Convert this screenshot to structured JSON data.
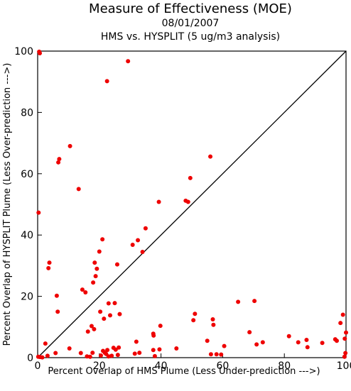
{
  "chart_data": {
    "type": "scatter",
    "title": "Measure of Effectiveness (MOE)",
    "subtitle_date": "08/01/2007",
    "subtitle_analysis": "HMS vs. HYSPLIT  (5 ug/m3 analysis)",
    "xlabel": "Percent Overlap of HMS Plume (Less Under-prediction --->)",
    "ylabel": "Percent Overlap of HYSPLIT Plume (Less Over-prediction --->)",
    "xlim": [
      0,
      100
    ],
    "ylim": [
      0,
      100
    ],
    "xticks": [
      "0",
      "20",
      "40",
      "60",
      "80",
      "100"
    ],
    "yticks": [
      "0",
      "20",
      "40",
      "60",
      "80",
      "100"
    ],
    "grid": false,
    "reference_line": "y = x",
    "marker_color": "#ee0000",
    "line_color": "#000000",
    "points": [
      [
        0.5,
        99.8
      ],
      [
        0.7,
        99.3
      ],
      [
        0.3,
        47.3
      ],
      [
        0.2,
        0.3
      ],
      [
        0.8,
        0.2
      ],
      [
        1.5,
        0.1
      ],
      [
        2.5,
        4.6
      ],
      [
        3.5,
        29.2
      ],
      [
        3.8,
        31
      ],
      [
        3.2,
        0.6
      ],
      [
        5.8,
        1.5
      ],
      [
        6.2,
        20.2
      ],
      [
        6.5,
        15
      ],
      [
        6.7,
        63.7
      ],
      [
        7.0,
        64.8
      ],
      [
        10.5,
        69
      ],
      [
        10.3,
        3.0
      ],
      [
        13.3,
        55
      ],
      [
        14.0,
        1.5
      ],
      [
        14.5,
        22.2
      ],
      [
        15.5,
        21.3
      ],
      [
        16.3,
        8.5
      ],
      [
        16.0,
        0.4
      ],
      [
        17.0,
        0.3
      ],
      [
        17.5,
        10.3
      ],
      [
        17.8,
        1.6
      ],
      [
        18.0,
        24.5
      ],
      [
        18.3,
        9.3
      ],
      [
        18.5,
        31
      ],
      [
        18.8,
        26.6
      ],
      [
        19.2,
        29
      ],
      [
        20.0,
        34.6
      ],
      [
        20.3,
        15
      ],
      [
        20.5,
        0.7
      ],
      [
        21.0,
        38.6
      ],
      [
        21.2,
        2.2
      ],
      [
        21.5,
        12.7
      ],
      [
        21.8,
        1.6
      ],
      [
        22.2,
        1.2
      ],
      [
        22.5,
        90.2
      ],
      [
        22.6,
        2.5
      ],
      [
        23.0,
        0.4
      ],
      [
        23.5,
        13.8
      ],
      [
        23.0,
        17.7
      ],
      [
        24.0,
        0.6
      ],
      [
        24.6,
        3.2
      ],
      [
        25.0,
        17.8
      ],
      [
        25.3,
        2.6
      ],
      [
        25.8,
        30.4
      ],
      [
        26.3,
        3.3
      ],
      [
        26.0,
        0.9
      ],
      [
        26.6,
        14.2
      ],
      [
        29.3,
        96.7
      ],
      [
        30.8,
        36.8
      ],
      [
        31.5,
        1.3
      ],
      [
        32.0,
        5.2
      ],
      [
        32.5,
        38.3
      ],
      [
        33.0,
        1.6
      ],
      [
        34.0,
        34.5
      ],
      [
        35.0,
        42.2
      ],
      [
        37.5,
        7.8
      ],
      [
        37.6,
        7.2
      ],
      [
        37.5,
        2.5
      ],
      [
        38.0,
        0.5
      ],
      [
        39.5,
        2.7
      ],
      [
        39.3,
        50.8
      ],
      [
        39.8,
        10.4
      ],
      [
        45.0,
        3.0
      ],
      [
        48.0,
        51.2
      ],
      [
        48.8,
        50.8
      ],
      [
        49.5,
        58.6
      ],
      [
        50.5,
        12.2
      ],
      [
        51.0,
        14.3
      ],
      [
        55.0,
        5.5
      ],
      [
        56.0,
        65.6
      ],
      [
        56.2,
        1.1
      ],
      [
        56.8,
        12.5
      ],
      [
        57.0,
        10.7
      ],
      [
        58.0,
        1.1
      ],
      [
        59.5,
        1.0
      ],
      [
        60.5,
        3.8
      ],
      [
        65.0,
        18.2
      ],
      [
        68.7,
        8.3
      ],
      [
        70.3,
        18.5
      ],
      [
        71.0,
        4.3
      ],
      [
        73.0,
        5.0
      ],
      [
        81.5,
        7.0
      ],
      [
        84.5,
        5.0
      ],
      [
        87.2,
        5.8
      ],
      [
        87.5,
        3.4
      ],
      [
        92.3,
        4.8
      ],
      [
        96.5,
        6.0
      ],
      [
        97.0,
        5.5
      ],
      [
        98.2,
        11.3
      ],
      [
        99.0,
        14.0
      ],
      [
        99.5,
        0.3
      ],
      [
        99.6,
        6.2
      ],
      [
        100.0,
        8.2
      ],
      [
        99.8,
        1.5
      ]
    ]
  }
}
